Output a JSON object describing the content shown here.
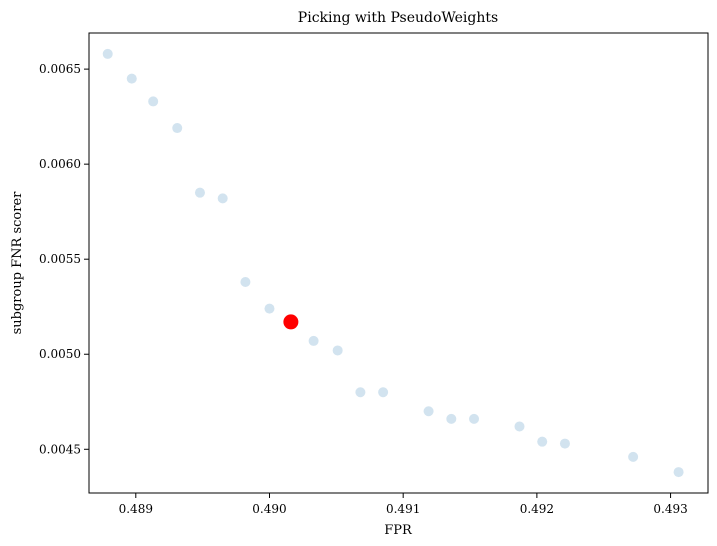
{
  "chart_data": {
    "type": "scatter",
    "title": "Picking with PseudoWeights",
    "xlabel": "FPR",
    "ylabel": "subgroup FNR scorer",
    "xlim": [
      0.48865,
      0.49328
    ],
    "ylim": [
      0.00427,
      0.00669
    ],
    "x_ticks": [
      0.489,
      0.49,
      0.491,
      0.492,
      0.493
    ],
    "x_tick_labels": [
      "0.489",
      "0.490",
      "0.491",
      "0.492",
      "0.493"
    ],
    "y_ticks": [
      0.0045,
      0.005,
      0.0055,
      0.006,
      0.0065
    ],
    "y_tick_labels": [
      "0.0045",
      "0.0050",
      "0.0055",
      "0.0060",
      "0.0065"
    ],
    "grid": false,
    "series": [
      {
        "color": "#a6c8e0",
        "opacity": 0.5,
        "points": [
          {
            "x": 0.48879,
            "y": 0.00658
          },
          {
            "x": 0.48897,
            "y": 0.00645
          },
          {
            "x": 0.48913,
            "y": 0.00633
          },
          {
            "x": 0.48931,
            "y": 0.00619
          },
          {
            "x": 0.48948,
            "y": 0.00585
          },
          {
            "x": 0.48965,
            "y": 0.00582
          },
          {
            "x": 0.48982,
            "y": 0.00538
          },
          {
            "x": 0.49,
            "y": 0.00524
          },
          {
            "x": 0.49033,
            "y": 0.00507
          },
          {
            "x": 0.49051,
            "y": 0.00502
          },
          {
            "x": 0.49068,
            "y": 0.0048
          },
          {
            "x": 0.49085,
            "y": 0.0048
          },
          {
            "x": 0.49119,
            "y": 0.0047
          },
          {
            "x": 0.49136,
            "y": 0.00466
          },
          {
            "x": 0.49153,
            "y": 0.00466
          },
          {
            "x": 0.49187,
            "y": 0.00462
          },
          {
            "x": 0.49204,
            "y": 0.00454
          },
          {
            "x": 0.49221,
            "y": 0.00453
          },
          {
            "x": 0.49272,
            "y": 0.00446
          },
          {
            "x": 0.49306,
            "y": 0.00438
          }
        ]
      },
      {
        "color": "#ff0000",
        "opacity": 1,
        "highlight": true,
        "points": [
          {
            "x": 0.49016,
            "y": 0.00517
          }
        ]
      }
    ]
  }
}
